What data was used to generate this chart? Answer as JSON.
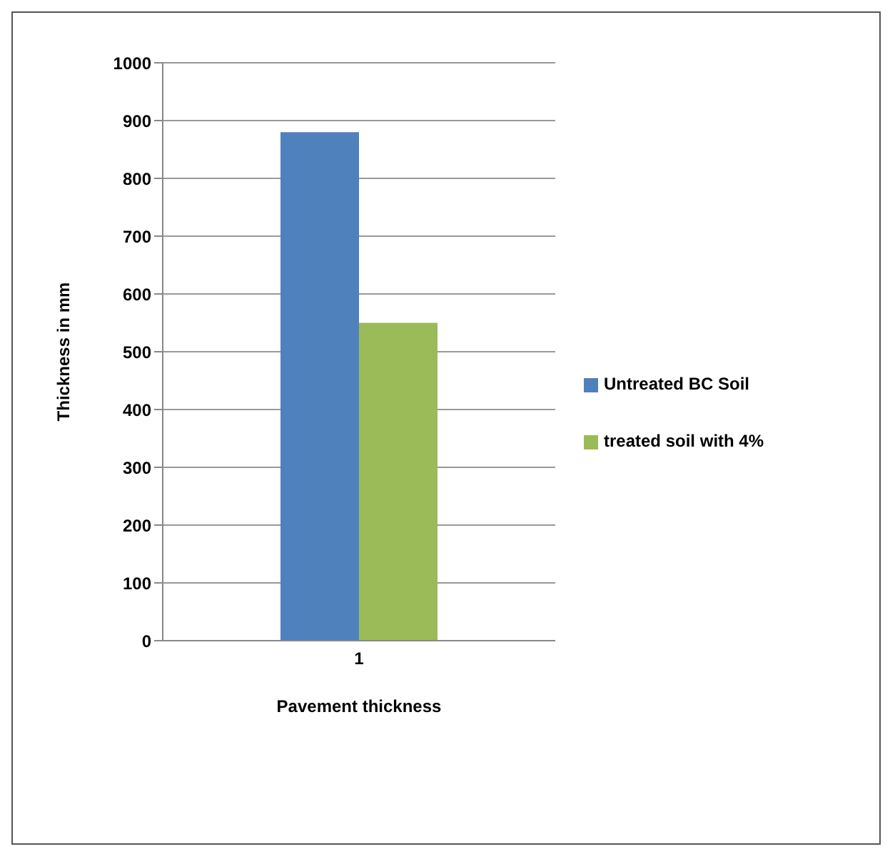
{
  "chart_data": {
    "type": "bar",
    "xlabel": "Pavement thickness",
    "ylabel": "Thickness in mm",
    "categories": [
      "1"
    ],
    "series": [
      {
        "name": "Untreated BC Soil",
        "color": "#4f81bd",
        "values": [
          880
        ]
      },
      {
        "name": "treated soil with 4%",
        "color": "#9bbb59",
        "values": [
          550
        ]
      }
    ],
    "ylim": [
      0,
      1000
    ],
    "yticks": [
      0,
      100,
      200,
      300,
      400,
      500,
      600,
      700,
      800,
      900,
      1000
    ],
    "grid": "y",
    "legend": "right"
  }
}
